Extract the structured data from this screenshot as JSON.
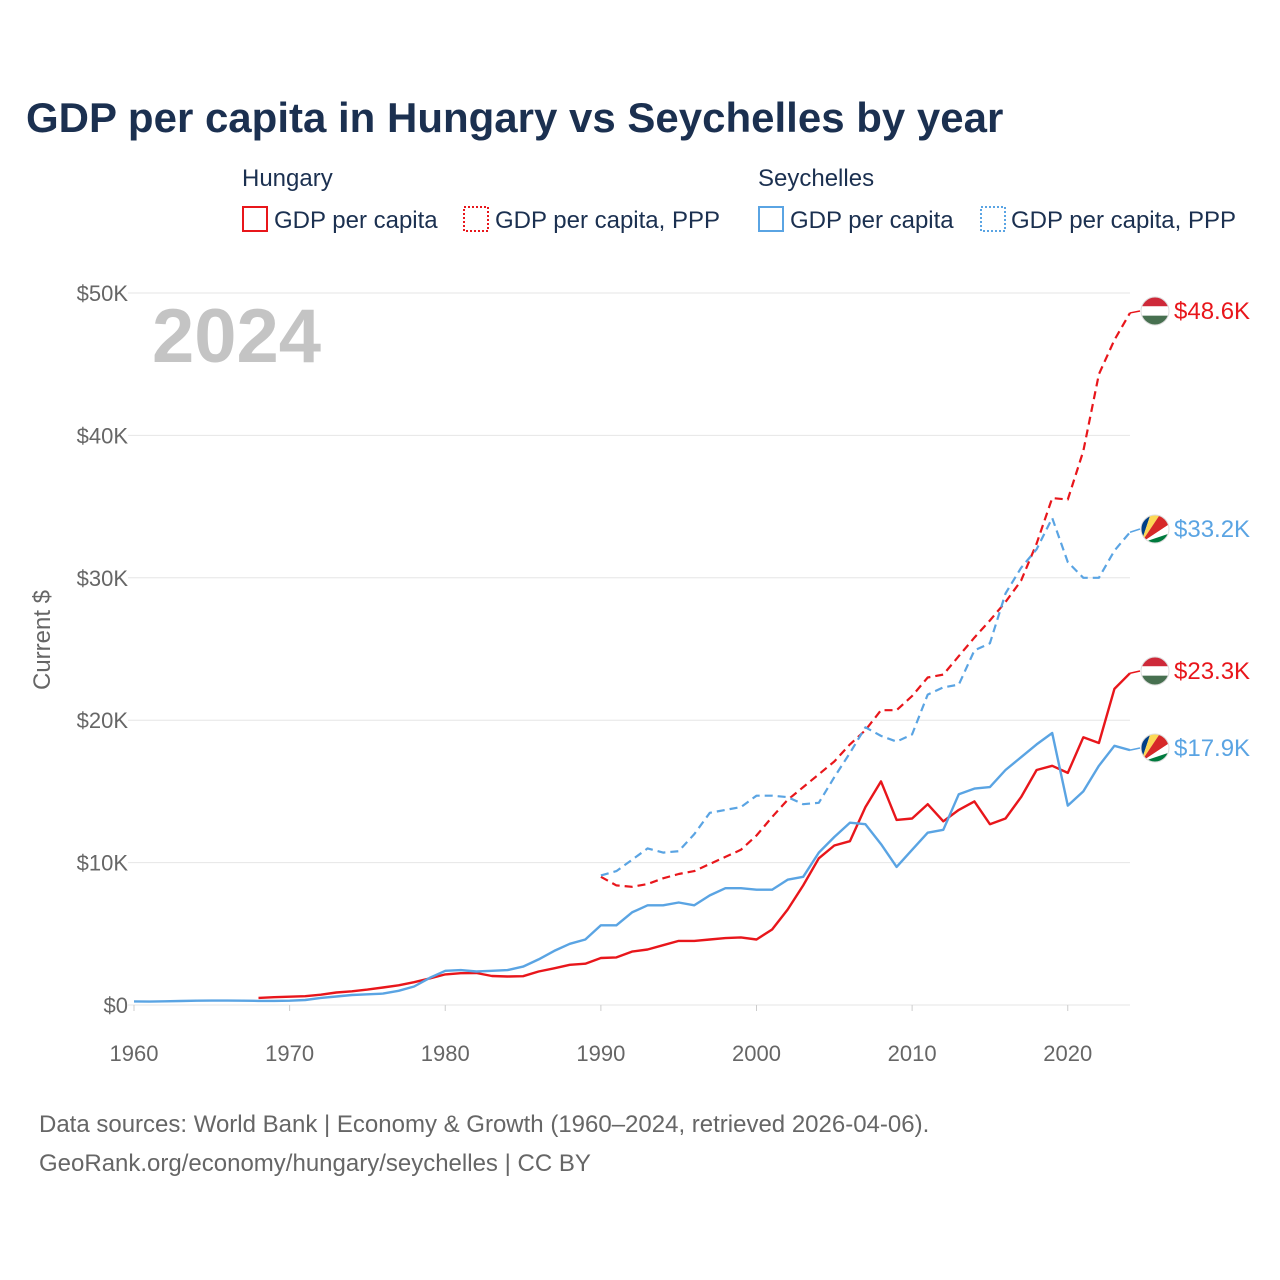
{
  "colors": {
    "hungary": "#e8161b",
    "seychelles": "#5aa4e3",
    "title": "#1b3050",
    "muted": "#666666",
    "watermark": "#c4c4c4"
  },
  "chart_data": {
    "type": "line",
    "title": "GDP per capita in Hungary vs Seychelles by year",
    "ylabel": "Current $",
    "xlabel": "",
    "xlim": [
      1960,
      2024
    ],
    "ylim": [
      0,
      50000
    ],
    "x_ticks": [
      1960,
      1970,
      1980,
      1990,
      2000,
      2010,
      2020
    ],
    "x_tick_labels": [
      "1960",
      "1970",
      "1980",
      "1990",
      "2000",
      "2010",
      "2020"
    ],
    "y_ticks": [
      0,
      10000,
      20000,
      30000,
      40000,
      50000
    ],
    "y_tick_labels": [
      "$0",
      "$10K",
      "$20K",
      "$30K",
      "$40K",
      "$50K"
    ],
    "year_label": "2024",
    "legend": {
      "groups": [
        {
          "title": "Hungary",
          "items": [
            "GDP per capita",
            "GDP per capita, PPP"
          ]
        },
        {
          "title": "Seychelles",
          "items": [
            "GDP per capita",
            "GDP per capita, PPP"
          ]
        }
      ]
    },
    "series": [
      {
        "name": "Hungary GDP per capita",
        "country": "hungary",
        "dash": false,
        "end_label": "$23.3K",
        "x": [
          1968,
          1969,
          1970,
          1971,
          1972,
          1973,
          1974,
          1975,
          1976,
          1977,
          1978,
          1979,
          1980,
          1981,
          1982,
          1983,
          1984,
          1985,
          1986,
          1987,
          1988,
          1989,
          1990,
          1991,
          1992,
          1993,
          1994,
          1995,
          1996,
          1997,
          1998,
          1999,
          2000,
          2001,
          2002,
          2003,
          2004,
          2005,
          2006,
          2007,
          2008,
          2009,
          2010,
          2011,
          2012,
          2013,
          2014,
          2015,
          2016,
          2017,
          2018,
          2019,
          2020,
          2021,
          2022,
          2023,
          2024
        ],
        "values": [
          500,
          550,
          580,
          620,
          720,
          880,
          960,
          1080,
          1230,
          1380,
          1600,
          1870,
          2150,
          2230,
          2250,
          2040,
          2000,
          2020,
          2350,
          2580,
          2820,
          2900,
          3300,
          3340,
          3750,
          3900,
          4200,
          4500,
          4500,
          4600,
          4700,
          4750,
          4600,
          5300,
          6700,
          8400,
          10300,
          11200,
          11500,
          13900,
          15700,
          13000,
          13100,
          14100,
          12900,
          13700,
          14300,
          12700,
          13100,
          14600,
          16500,
          16800,
          16300,
          18800,
          18400,
          22200,
          23300
        ]
      },
      {
        "name": "Hungary GDP per capita, PPP",
        "country": "hungary",
        "dash": true,
        "end_label": "$48.6K",
        "x": [
          1990,
          1991,
          1992,
          1993,
          1994,
          1995,
          1996,
          1997,
          1998,
          1999,
          2000,
          2001,
          2002,
          2003,
          2004,
          2005,
          2006,
          2007,
          2008,
          2009,
          2010,
          2011,
          2012,
          2013,
          2014,
          2015,
          2016,
          2017,
          2018,
          2019,
          2020,
          2021,
          2022,
          2023,
          2024
        ],
        "values": [
          9000,
          8400,
          8300,
          8500,
          8900,
          9200,
          9400,
          9900,
          10400,
          10900,
          11900,
          13200,
          14400,
          15300,
          16200,
          17100,
          18300,
          19300,
          20700,
          20700,
          21700,
          23000,
          23200,
          24500,
          25800,
          27000,
          28300,
          29800,
          32400,
          35600,
          35500,
          38900,
          44300,
          46700,
          48600
        ]
      },
      {
        "name": "Seychelles GDP per capita",
        "country": "seychelles",
        "dash": false,
        "end_label": "$17.9K",
        "x": [
          1960,
          1961,
          1962,
          1963,
          1964,
          1965,
          1966,
          1967,
          1968,
          1969,
          1970,
          1971,
          1972,
          1973,
          1974,
          1975,
          1976,
          1977,
          1978,
          1979,
          1980,
          1981,
          1982,
          1983,
          1984,
          1985,
          1986,
          1987,
          1988,
          1989,
          1990,
          1991,
          1992,
          1993,
          1994,
          1995,
          1996,
          1997,
          1998,
          1999,
          2000,
          2001,
          2002,
          2003,
          2004,
          2005,
          2006,
          2007,
          2008,
          2009,
          2010,
          2011,
          2012,
          2013,
          2014,
          2015,
          2016,
          2017,
          2018,
          2019,
          2020,
          2021,
          2022,
          2023,
          2024
        ],
        "values": [
          250,
          240,
          260,
          280,
          300,
          310,
          310,
          300,
          290,
          290,
          300,
          350,
          500,
          600,
          700,
          750,
          800,
          1000,
          1300,
          1900,
          2400,
          2450,
          2350,
          2400,
          2450,
          2700,
          3200,
          3800,
          4300,
          4600,
          5600,
          5600,
          6500,
          7000,
          7000,
          7200,
          7000,
          7700,
          8200,
          8200,
          8100,
          8100,
          8800,
          9000,
          10700,
          11800,
          12800,
          12700,
          11300,
          9700,
          10900,
          12100,
          12300,
          14800,
          15200,
          15300,
          16500,
          17400,
          18300,
          19100,
          14000,
          15000,
          16800,
          18200,
          17900
        ]
      },
      {
        "name": "Seychelles GDP per capita, PPP",
        "country": "seychelles",
        "dash": true,
        "end_label": "$33.2K",
        "x": [
          1990,
          1991,
          1992,
          1993,
          1994,
          1995,
          1996,
          1997,
          1998,
          1999,
          2000,
          2001,
          2002,
          2003,
          2004,
          2005,
          2006,
          2007,
          2008,
          2009,
          2010,
          2011,
          2012,
          2013,
          2014,
          2015,
          2016,
          2017,
          2018,
          2019,
          2020,
          2021,
          2022,
          2023,
          2024
        ],
        "values": [
          9100,
          9400,
          10200,
          11000,
          10700,
          10800,
          12000,
          13500,
          13700,
          13900,
          14700,
          14700,
          14600,
          14100,
          14200,
          16000,
          17700,
          19500,
          18900,
          18500,
          19000,
          21800,
          22300,
          22500,
          24900,
          25400,
          28900,
          30700,
          32000,
          34200,
          31100,
          30000,
          30000,
          31900,
          33200
        ]
      }
    ]
  },
  "source": {
    "line1": "Data sources: World Bank | Economy & Growth (1960–2024, retrieved 2026-04-06).",
    "line2": "GeoRank.org/economy/hungary/seychelles | CC BY"
  }
}
